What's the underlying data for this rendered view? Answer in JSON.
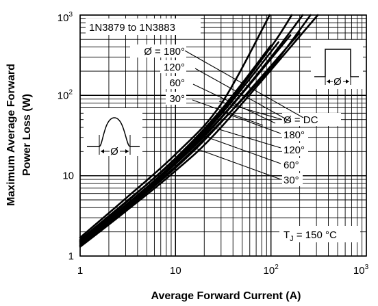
{
  "chart_data": {
    "type": "line",
    "title": "",
    "device_label": "1N3879 to 1N3883",
    "xlabel": "Average Forward Current (A)",
    "ylabel": [
      "Maximum Average Forward",
      "Power Loss (W)"
    ],
    "x_scale": "log",
    "y_scale": "log",
    "xlim": [
      1,
      1000
    ],
    "ylim": [
      1,
      1000
    ],
    "grid": true,
    "x_ticks": [
      {
        "value": 1,
        "base": "1",
        "exp": ""
      },
      {
        "value": 10,
        "base": "10",
        "exp": ""
      },
      {
        "value": 100,
        "base": "10",
        "exp": "2"
      },
      {
        "value": 1000,
        "base": "10",
        "exp": "3"
      }
    ],
    "y_ticks": [
      {
        "value": 1,
        "base": "1",
        "exp": ""
      },
      {
        "value": 10,
        "base": "10",
        "exp": ""
      },
      {
        "value": 100,
        "base": "10",
        "exp": "2"
      },
      {
        "value": 1000,
        "base": "10",
        "exp": "3"
      }
    ],
    "condition_label": {
      "prefix": "T",
      "sub": "J",
      "suffix": " = 150 °C"
    },
    "sine_group_labels": [
      "Ø  = 180°",
      "120°",
      "60°",
      "30°"
    ],
    "square_group_labels": [
      "Ø  = DC",
      "180°",
      "120°",
      "60°",
      "30°"
    ],
    "series": [
      {
        "name": "Ø = 180° (half sine)",
        "x": [
          1,
          3,
          10,
          30,
          100
        ],
        "y": [
          1.55,
          4.6,
          16.5,
          66,
          420
        ]
      },
      {
        "name": "120° (half sine)",
        "x": [
          1,
          3,
          10,
          30,
          120
        ],
        "y": [
          1.5,
          4.3,
          15,
          58,
          460
        ]
      },
      {
        "name": "60° (half sine)",
        "x": [
          1,
          3,
          10,
          30,
          160
        ],
        "y": [
          1.45,
          4.1,
          14,
          52,
          560
        ]
      },
      {
        "name": "30° (half sine)",
        "x": [
          1,
          3,
          10,
          30,
          200
        ],
        "y": [
          1.35,
          3.8,
          12.5,
          46,
          600
        ]
      },
      {
        "name": "Ø = DC (square wave)",
        "x": [
          1,
          3,
          10,
          30,
          310
        ],
        "y": [
          1.3,
          3.6,
          11.5,
          40,
          1000
        ]
      },
      {
        "name": "180° (square wave)",
        "x": [
          1,
          3,
          10,
          30,
          100,
          260
        ],
        "y": [
          1.4,
          4,
          13,
          47,
          220,
          1000
        ]
      },
      {
        "name": "120° (square wave)",
        "x": [
          1,
          3,
          10,
          30,
          100,
          215
        ],
        "y": [
          1.5,
          4.3,
          14.5,
          53,
          300,
          1000
        ]
      },
      {
        "name": "60° (square wave)",
        "x": [
          1,
          3,
          10,
          30,
          100,
          165
        ],
        "y": [
          1.6,
          4.7,
          16,
          62,
          400,
          1000
        ]
      },
      {
        "name": "30° (square wave)",
        "x": [
          1,
          3,
          10,
          30,
          97
        ],
        "y": [
          1.7,
          5.2,
          18.5,
          78,
          1000
        ]
      }
    ]
  }
}
